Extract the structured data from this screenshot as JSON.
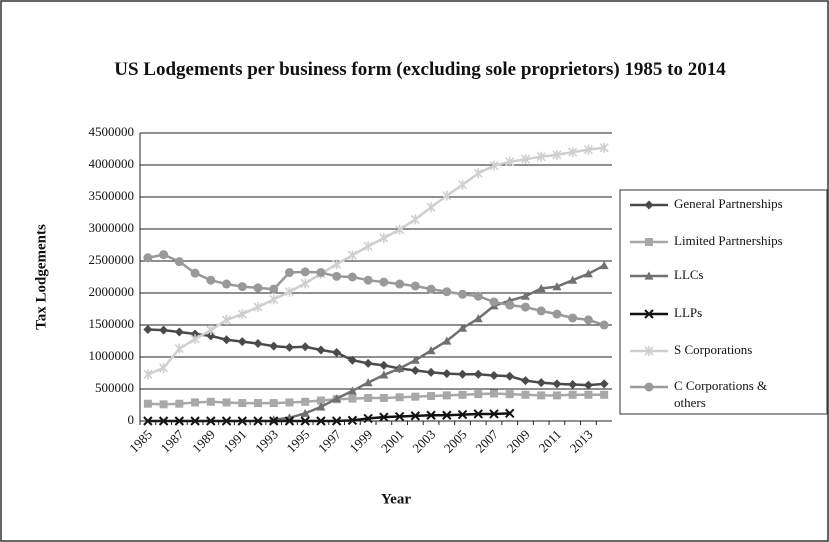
{
  "chart_data": {
    "type": "line",
    "title": "US Lodgements per business form (excluding sole proprietors) 1985 to 2014",
    "xlabel": "Year",
    "ylabel": "Tax Lodgements",
    "categories": [
      "1985",
      null,
      "1987",
      null,
      "1989",
      null,
      "1991",
      null,
      "1993",
      null,
      "1995",
      null,
      "1997",
      null,
      "1999",
      null,
      "2001",
      null,
      "2003",
      null,
      "2005",
      null,
      "2007",
      null,
      "2009",
      null,
      "2011",
      null,
      "2013",
      null
    ],
    "ylim": [
      0,
      4500000
    ],
    "yticks": [
      0,
      500000,
      1000000,
      1500000,
      2000000,
      2500000,
      3000000,
      3500000,
      4000000,
      4500000
    ],
    "grid": true,
    "legend": "right",
    "series": [
      {
        "name": "General Partnerships",
        "color": "#4a4a4a",
        "marker": "diamond",
        "values": [
          1430000,
          1420000,
          1390000,
          1360000,
          1330000,
          1270000,
          1240000,
          1210000,
          1170000,
          1150000,
          1160000,
          1110000,
          1070000,
          950000,
          900000,
          870000,
          820000,
          790000,
          760000,
          740000,
          730000,
          730000,
          710000,
          700000,
          630000,
          600000,
          580000,
          570000,
          560000,
          580000
        ]
      },
      {
        "name": "Limited Partnerships",
        "color": "#a8a8a8",
        "marker": "square",
        "values": [
          270000,
          260000,
          270000,
          290000,
          300000,
          290000,
          280000,
          280000,
          280000,
          290000,
          300000,
          320000,
          340000,
          350000,
          360000,
          360000,
          370000,
          380000,
          390000,
          400000,
          410000,
          420000,
          430000,
          420000,
          410000,
          400000,
          400000,
          410000,
          410000,
          410000
        ]
      },
      {
        "name": "LLCs",
        "color": "#707070",
        "marker": "triangle",
        "values": [
          null,
          null,
          null,
          null,
          null,
          null,
          null,
          null,
          20000,
          50000,
          120000,
          220000,
          350000,
          470000,
          600000,
          720000,
          820000,
          950000,
          1100000,
          1250000,
          1450000,
          1600000,
          1800000,
          1880000,
          1950000,
          2070000,
          2100000,
          2200000,
          2300000,
          2430000
        ]
      },
      {
        "name": "LLPs",
        "color": "#111111",
        "marker": "x",
        "values": [
          0,
          0,
          0,
          0,
          0,
          0,
          0,
          0,
          0,
          0,
          0,
          0,
          0,
          10000,
          40000,
          60000,
          70000,
          80000,
          90000,
          90000,
          100000,
          110000,
          110000,
          120000,
          null,
          null,
          null,
          null,
          null,
          null
        ]
      },
      {
        "name": "S Corporations",
        "color": "#cfcfcf",
        "marker": "star",
        "values": [
          730000,
          830000,
          1130000,
          1280000,
          1420000,
          1580000,
          1670000,
          1780000,
          1900000,
          2020000,
          2150000,
          2300000,
          2450000,
          2590000,
          2730000,
          2860000,
          2990000,
          3150000,
          3340000,
          3520000,
          3690000,
          3870000,
          3990000,
          4050000,
          4090000,
          4130000,
          4160000,
          4200000,
          4240000,
          4270000
        ]
      },
      {
        "name": "C Corporations & others",
        "color": "#999999",
        "marker": "circle",
        "values": [
          2550000,
          2600000,
          2490000,
          2310000,
          2200000,
          2140000,
          2100000,
          2080000,
          2060000,
          2320000,
          2330000,
          2320000,
          2260000,
          2250000,
          2200000,
          2170000,
          2140000,
          2110000,
          2060000,
          2020000,
          1980000,
          1950000,
          1860000,
          1810000,
          1780000,
          1720000,
          1670000,
          1610000,
          1580000,
          1500000
        ]
      }
    ]
  }
}
